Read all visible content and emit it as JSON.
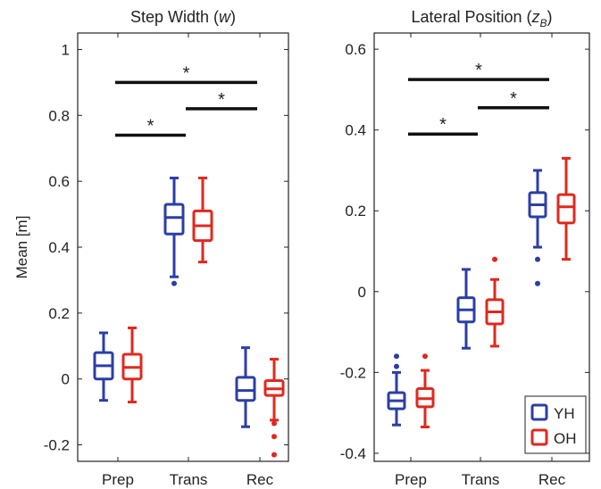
{
  "chart_data": [
    {
      "type": "box",
      "title": "Step Width",
      "title_symbol": "w",
      "ylabel": "Mean [m]",
      "xlabel": "",
      "categories": [
        "Prep",
        "Trans",
        "Rec"
      ],
      "ylim": [
        -0.25,
        1.05
      ],
      "yticks": [
        {
          "v": -0.2,
          "label": "-0.2"
        },
        {
          "v": 0,
          "label": "0"
        },
        {
          "v": 0.2,
          "label": "0.2"
        },
        {
          "v": 0.4,
          "label": "0.4"
        },
        {
          "v": 0.6,
          "label": "0.6"
        },
        {
          "v": 0.8,
          "label": "0.8"
        },
        {
          "v": 1,
          "label": "1"
        }
      ],
      "series": [
        {
          "name": "YH",
          "color": "#2b3ea6",
          "boxes": [
            {
              "category": "Prep",
              "whisker_low": -0.065,
              "q1": 0.0,
              "median": 0.04,
              "q3": 0.08,
              "whisker_high": 0.14,
              "outliers": []
            },
            {
              "category": "Trans",
              "whisker_low": 0.31,
              "q1": 0.44,
              "median": 0.49,
              "q3": 0.53,
              "whisker_high": 0.61,
              "outliers": [
                0.29
              ]
            },
            {
              "category": "Rec",
              "whisker_low": -0.145,
              "q1": -0.065,
              "median": -0.035,
              "q3": 0.005,
              "whisker_high": 0.095,
              "outliers": []
            }
          ]
        },
        {
          "name": "OH",
          "color": "#e0281e",
          "boxes": [
            {
              "category": "Prep",
              "whisker_low": -0.07,
              "q1": 0.0,
              "median": 0.035,
              "q3": 0.075,
              "whisker_high": 0.155,
              "outliers": []
            },
            {
              "category": "Trans",
              "whisker_low": 0.355,
              "q1": 0.42,
              "median": 0.465,
              "q3": 0.51,
              "whisker_high": 0.61,
              "outliers": []
            },
            {
              "category": "Rec",
              "whisker_low": -0.125,
              "q1": -0.05,
              "median": -0.03,
              "q3": -0.005,
              "whisker_high": 0.06,
              "outliers": [
                -0.135,
                -0.175,
                -0.23
              ]
            }
          ]
        }
      ],
      "significance": [
        {
          "from": "Prep",
          "to": "Trans",
          "y": 0.74,
          "label": "*"
        },
        {
          "from": "Trans",
          "to": "Rec",
          "y": 0.82,
          "label": "*"
        },
        {
          "from": "Prep",
          "to": "Rec",
          "y": 0.9,
          "label": "*"
        }
      ]
    },
    {
      "type": "box",
      "title": "Lateral Position",
      "title_symbol": "z",
      "title_subscript": "B",
      "ylabel": "",
      "xlabel": "",
      "categories": [
        "Prep",
        "Trans",
        "Rec"
      ],
      "ylim": [
        -0.42,
        0.64
      ],
      "yticks": [
        {
          "v": -0.4,
          "label": "-0.4"
        },
        {
          "v": -0.2,
          "label": "-0.2"
        },
        {
          "v": 0,
          "label": "0"
        },
        {
          "v": 0.2,
          "label": "0.2"
        },
        {
          "v": 0.4,
          "label": "0.4"
        },
        {
          "v": 0.6,
          "label": "0.6"
        }
      ],
      "series": [
        {
          "name": "YH",
          "color": "#2b3ea6",
          "boxes": [
            {
              "category": "Prep",
              "whisker_low": -0.33,
              "q1": -0.29,
              "median": -0.27,
              "q3": -0.25,
              "whisker_high": -0.2,
              "outliers": [
                -0.185,
                -0.16
              ]
            },
            {
              "category": "Trans",
              "whisker_low": -0.14,
              "q1": -0.075,
              "median": -0.045,
              "q3": -0.015,
              "whisker_high": 0.055,
              "outliers": []
            },
            {
              "category": "Rec",
              "whisker_low": 0.11,
              "q1": 0.185,
              "median": 0.215,
              "q3": 0.245,
              "whisker_high": 0.3,
              "outliers": [
                0.08,
                0.02
              ]
            }
          ]
        },
        {
          "name": "OH",
          "color": "#e0281e",
          "boxes": [
            {
              "category": "Prep",
              "whisker_low": -0.335,
              "q1": -0.285,
              "median": -0.265,
              "q3": -0.24,
              "whisker_high": -0.195,
              "outliers": [
                -0.16
              ]
            },
            {
              "category": "Trans",
              "whisker_low": -0.135,
              "q1": -0.08,
              "median": -0.05,
              "q3": -0.02,
              "whisker_high": 0.03,
              "outliers": [
                0.08
              ]
            },
            {
              "category": "Rec",
              "whisker_low": 0.08,
              "q1": 0.17,
              "median": 0.21,
              "q3": 0.24,
              "whisker_high": 0.33,
              "outliers": []
            }
          ]
        }
      ],
      "significance": [
        {
          "from": "Prep",
          "to": "Trans",
          "y": 0.39,
          "label": "*"
        },
        {
          "from": "Trans",
          "to": "Rec",
          "y": 0.455,
          "label": "*"
        },
        {
          "from": "Prep",
          "to": "Rec",
          "y": 0.525,
          "label": "*"
        }
      ],
      "legend": {
        "placement": "bottom-right",
        "entries": [
          "YH",
          "OH"
        ]
      }
    }
  ]
}
